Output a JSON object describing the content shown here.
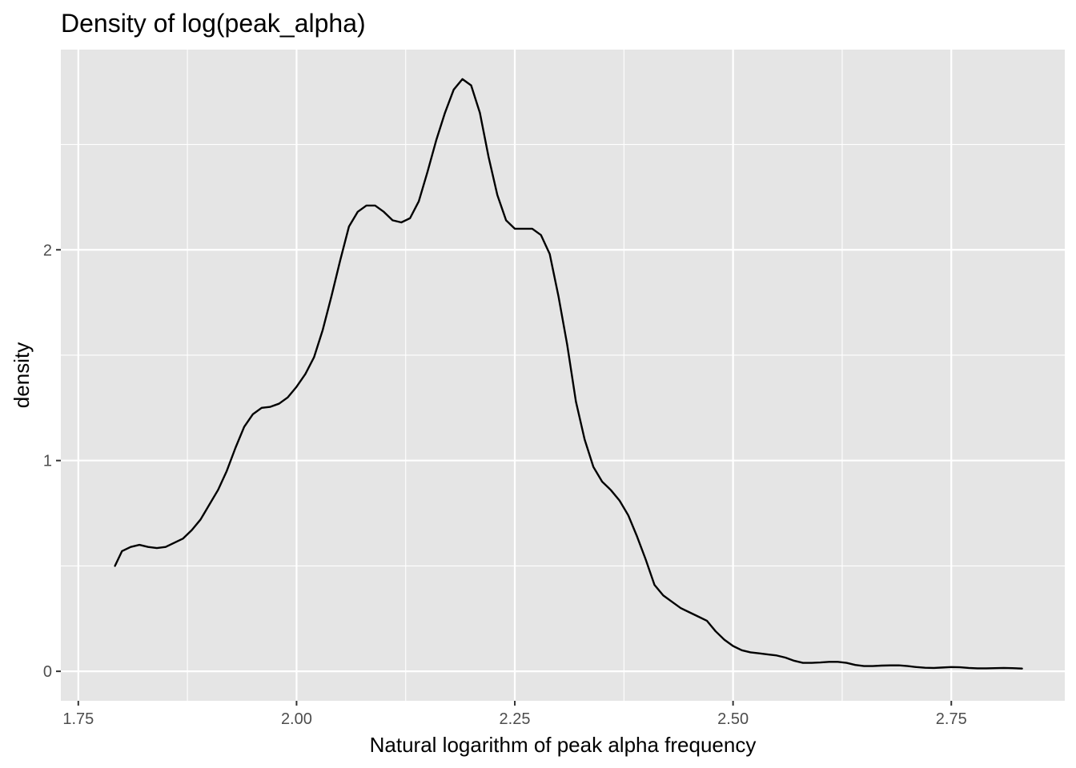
{
  "chart_data": {
    "type": "area",
    "title": "Density of log(peak_alpha)",
    "xlabel": "Natural logarithm of peak alpha frequency",
    "ylabel": "density",
    "xlim": [
      1.73,
      2.88
    ],
    "ylim": [
      -0.14,
      2.95
    ],
    "x_ticks": [
      1.75,
      2.0,
      2.25,
      2.5,
      2.75
    ],
    "x_tick_labels": [
      "1.75",
      "2.00",
      "2.25",
      "2.50",
      "2.75"
    ],
    "y_ticks": [
      0,
      1,
      2
    ],
    "y_tick_labels": [
      "0",
      "1",
      "2"
    ],
    "grid": true,
    "legend": "none",
    "colors": {
      "panel_background": "#e5e5e5",
      "grid_line": "#ffffff",
      "series_line": "#000000",
      "tick_label": "#4d4d4d"
    },
    "series": [
      {
        "points": [
          [
            1.792,
            0.5
          ],
          [
            1.8,
            0.57
          ],
          [
            1.81,
            0.59
          ],
          [
            1.82,
            0.6
          ],
          [
            1.83,
            0.59
          ],
          [
            1.84,
            0.585
          ],
          [
            1.85,
            0.59
          ],
          [
            1.86,
            0.61
          ],
          [
            1.87,
            0.63
          ],
          [
            1.88,
            0.67
          ],
          [
            1.89,
            0.72
          ],
          [
            1.9,
            0.79
          ],
          [
            1.91,
            0.86
          ],
          [
            1.92,
            0.95
          ],
          [
            1.93,
            1.06
          ],
          [
            1.94,
            1.16
          ],
          [
            1.95,
            1.22
          ],
          [
            1.96,
            1.25
          ],
          [
            1.97,
            1.255
          ],
          [
            1.98,
            1.27
          ],
          [
            1.99,
            1.3
          ],
          [
            2.0,
            1.35
          ],
          [
            2.01,
            1.41
          ],
          [
            2.02,
            1.49
          ],
          [
            2.03,
            1.62
          ],
          [
            2.04,
            1.78
          ],
          [
            2.05,
            1.95
          ],
          [
            2.06,
            2.11
          ],
          [
            2.07,
            2.18
          ],
          [
            2.08,
            2.21
          ],
          [
            2.09,
            2.21
          ],
          [
            2.1,
            2.18
          ],
          [
            2.11,
            2.14
          ],
          [
            2.12,
            2.13
          ],
          [
            2.13,
            2.15
          ],
          [
            2.14,
            2.23
          ],
          [
            2.15,
            2.37
          ],
          [
            2.16,
            2.52
          ],
          [
            2.17,
            2.65
          ],
          [
            2.18,
            2.76
          ],
          [
            2.19,
            2.81
          ],
          [
            2.2,
            2.78
          ],
          [
            2.21,
            2.65
          ],
          [
            2.22,
            2.44
          ],
          [
            2.23,
            2.26
          ],
          [
            2.24,
            2.14
          ],
          [
            2.25,
            2.1
          ],
          [
            2.26,
            2.1
          ],
          [
            2.27,
            2.1
          ],
          [
            2.28,
            2.07
          ],
          [
            2.29,
            1.98
          ],
          [
            2.3,
            1.78
          ],
          [
            2.31,
            1.55
          ],
          [
            2.32,
            1.28
          ],
          [
            2.33,
            1.1
          ],
          [
            2.34,
            0.97
          ],
          [
            2.35,
            0.9
          ],
          [
            2.36,
            0.86
          ],
          [
            2.37,
            0.81
          ],
          [
            2.38,
            0.74
          ],
          [
            2.39,
            0.64
          ],
          [
            2.4,
            0.53
          ],
          [
            2.41,
            0.41
          ],
          [
            2.42,
            0.36
          ],
          [
            2.43,
            0.33
          ],
          [
            2.44,
            0.3
          ],
          [
            2.45,
            0.28
          ],
          [
            2.46,
            0.26
          ],
          [
            2.47,
            0.24
          ],
          [
            2.48,
            0.19
          ],
          [
            2.49,
            0.15
          ],
          [
            2.5,
            0.12
          ],
          [
            2.51,
            0.1
          ],
          [
            2.52,
            0.09
          ],
          [
            2.53,
            0.085
          ],
          [
            2.54,
            0.08
          ],
          [
            2.55,
            0.075
          ],
          [
            2.56,
            0.065
          ],
          [
            2.57,
            0.05
          ],
          [
            2.58,
            0.04
          ],
          [
            2.59,
            0.04
          ],
          [
            2.6,
            0.042
          ],
          [
            2.61,
            0.045
          ],
          [
            2.62,
            0.045
          ],
          [
            2.63,
            0.04
          ],
          [
            2.64,
            0.03
          ],
          [
            2.65,
            0.025
          ],
          [
            2.66,
            0.025
          ],
          [
            2.67,
            0.027
          ],
          [
            2.68,
            0.028
          ],
          [
            2.69,
            0.028
          ],
          [
            2.7,
            0.025
          ],
          [
            2.71,
            0.02
          ],
          [
            2.72,
            0.017
          ],
          [
            2.73,
            0.016
          ],
          [
            2.74,
            0.018
          ],
          [
            2.75,
            0.02
          ],
          [
            2.76,
            0.019
          ],
          [
            2.77,
            0.016
          ],
          [
            2.78,
            0.014
          ],
          [
            2.79,
            0.014
          ],
          [
            2.8,
            0.015
          ],
          [
            2.81,
            0.016
          ],
          [
            2.82,
            0.015
          ],
          [
            2.831,
            0.013
          ]
        ]
      }
    ]
  }
}
